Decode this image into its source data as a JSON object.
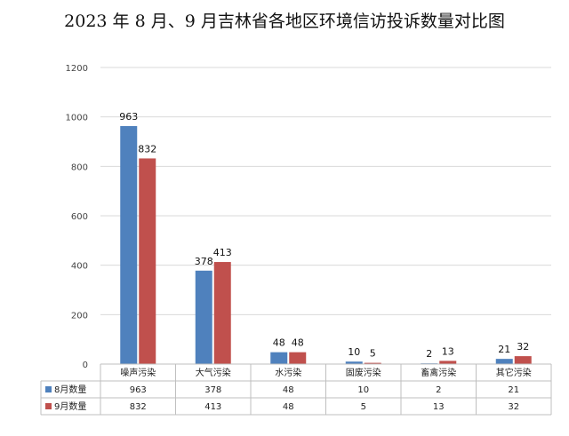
{
  "chart_data": {
    "type": "bar",
    "title": "2023 年 8 月、9 月吉林省各地区环境信访投诉数量对比图",
    "categories": [
      "噪声污染",
      "大气污染",
      "水污染",
      "固废污染",
      "畜禽污染",
      "其它污染"
    ],
    "series": [
      {
        "name": "8月数量",
        "values": [
          963,
          378,
          48,
          10,
          2,
          21
        ],
        "color": "#4F81BD"
      },
      {
        "name": "9月数量",
        "values": [
          832,
          413,
          48,
          5,
          13,
          32
        ],
        "color": "#C0504D"
      }
    ],
    "ylim": [
      0,
      1200
    ],
    "yticks": [
      0,
      200,
      400,
      600,
      800,
      1000,
      1200
    ],
    "grid": true,
    "legend": "data-table"
  }
}
